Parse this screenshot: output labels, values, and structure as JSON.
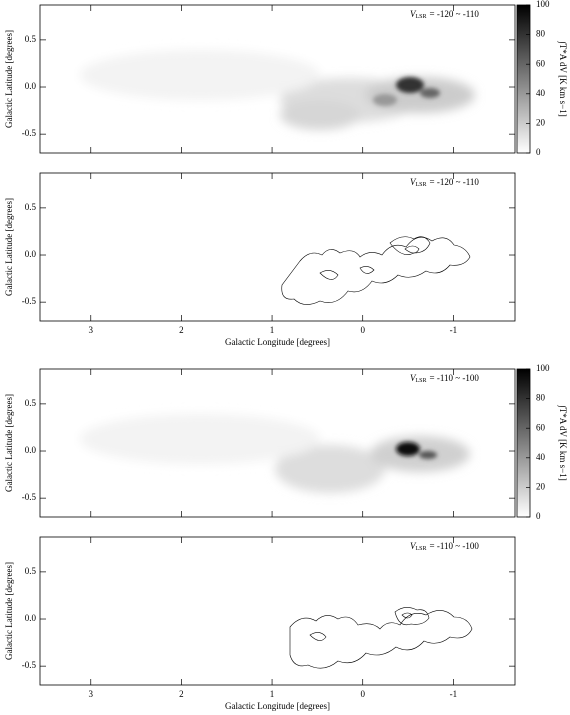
{
  "chart_data": [
    {
      "type": "heatmap",
      "annotation": {
        "symbol": "V",
        "subscript": "LSR",
        "text": "= -120 ~ -110"
      },
      "ylabel": "Galactic Latitude [degrees]",
      "xlim": [
        3.56,
        -1.68
      ],
      "ylim": [
        -0.7,
        0.87
      ],
      "xticks": [
        3,
        2,
        1,
        0,
        -1
      ],
      "yticks": [
        0.5,
        {
          "value": 0,
          "label": "0.0"
        },
        -0.5
      ],
      "colorbar": {
        "label": "∫T*A dV [K km s−1]",
        "clim": [
          0,
          100
        ],
        "ticks": [
          0,
          20,
          40,
          60,
          80,
          100
        ]
      }
    },
    {
      "type": "contour",
      "annotation": {
        "symbol": "V",
        "subscript": "LSR",
        "text": "= -120 ~ -110"
      },
      "ylabel": "Galactic Latitude [degrees]",
      "xlabel": "Galactic Longitude [degrees]",
      "xlim": [
        3.56,
        -1.68
      ],
      "ylim": [
        -0.7,
        0.87
      ],
      "xticks": [
        3,
        2,
        1,
        0,
        -1
      ],
      "yticks": [
        0.5,
        {
          "value": 0,
          "label": "0.0"
        },
        -0.5
      ]
    },
    {
      "type": "heatmap",
      "annotation": {
        "symbol": "V",
        "subscript": "LSR",
        "text": "= -110 ~ -100"
      },
      "ylabel": "Galactic Latitude [degrees]",
      "xlim": [
        3.56,
        -1.68
      ],
      "ylim": [
        -0.7,
        0.87
      ],
      "xticks": [
        3,
        2,
        1,
        0,
        -1
      ],
      "yticks": [
        0.5,
        {
          "value": 0,
          "label": "0.0"
        },
        -0.5
      ],
      "colorbar": {
        "label": "∫T*A dV [K km s−1]",
        "clim": [
          0,
          100
        ],
        "ticks": [
          0,
          20,
          40,
          60,
          80,
          100
        ]
      }
    },
    {
      "type": "contour",
      "annotation": {
        "symbol": "V",
        "subscript": "LSR",
        "text": "= -110 ~ -100"
      },
      "ylabel": "Galactic Latitude [degrees]",
      "xlabel": "Galactic Longitude [degrees]",
      "xlim": [
        3.56,
        -1.68
      ],
      "ylim": [
        -0.7,
        0.87
      ],
      "xticks": [
        3,
        2,
        1,
        0,
        -1
      ],
      "yticks": [
        0.5,
        {
          "value": 0,
          "label": "0.0"
        },
        -0.5
      ]
    }
  ]
}
